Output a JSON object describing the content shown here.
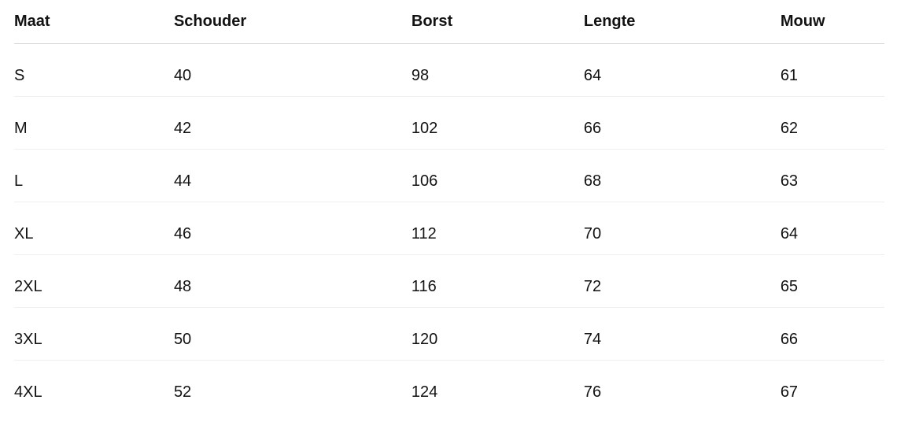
{
  "table": {
    "name": "size-chart",
    "columns": [
      "Maat",
      "Schouder",
      "Borst",
      "Lengte",
      "Mouw"
    ],
    "rows": [
      [
        "S",
        "40",
        "98",
        "64",
        "61"
      ],
      [
        "M",
        "42",
        "102",
        "66",
        "62"
      ],
      [
        "L",
        "44",
        "106",
        "68",
        "63"
      ],
      [
        "XL",
        "46",
        "112",
        "70",
        "64"
      ],
      [
        "2XL",
        "48",
        "116",
        "72",
        "65"
      ],
      [
        "3XL",
        "50",
        "120",
        "74",
        "66"
      ],
      [
        "4XL",
        "52",
        "124",
        "76",
        "67"
      ]
    ]
  },
  "colors": {
    "text": "#121212",
    "header_divider": "#d5d5d5",
    "row_divider": "#efefef",
    "background": "#ffffff"
  }
}
